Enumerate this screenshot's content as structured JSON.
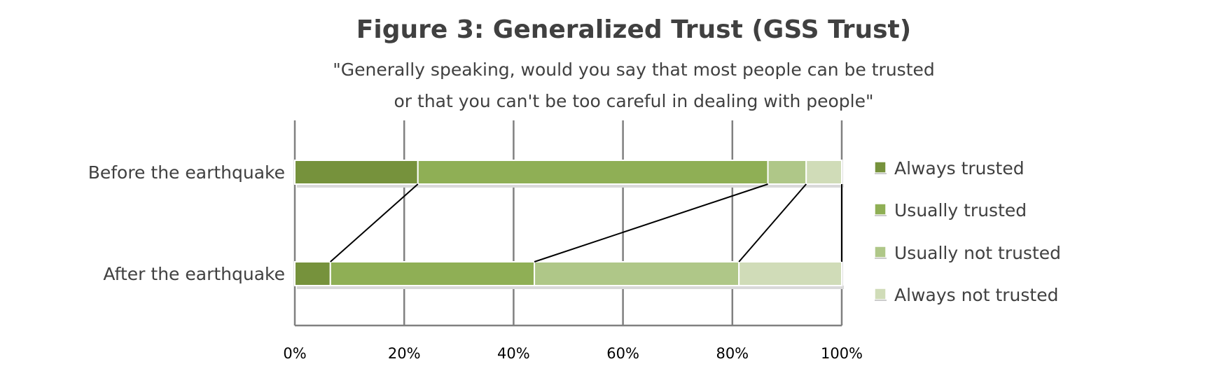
{
  "chart_data": {
    "type": "bar",
    "orientation": "horizontal",
    "stacked": true,
    "title": "Figure 3: Generalized Trust (GSS Trust)",
    "subtitle_line1": "\"Generally speaking, would you say that most people can be trusted",
    "subtitle_line2": "or that you can't be too careful in dealing with people\"",
    "categories": [
      "Before the earthquake",
      "After the earthquake"
    ],
    "series": [
      {
        "name": "Always trusted",
        "color": "#76923C",
        "values": [
          22.5,
          6.5
        ]
      },
      {
        "name": "Usually trusted",
        "color": "#8FAF55",
        "values": [
          64,
          37.3
        ]
      },
      {
        "name": "Usually not trusted",
        "color": "#AFC788",
        "values": [
          7,
          37.4
        ]
      },
      {
        "name": "Always not trusted",
        "color": "#D0DCB8",
        "values": [
          6.5,
          18.8
        ]
      }
    ],
    "xlim": [
      0,
      100
    ],
    "xticks": [
      "0%",
      "20%",
      "40%",
      "60%",
      "80%",
      "100%"
    ],
    "grid": true,
    "series_lines": true,
    "legend_position": "right"
  }
}
